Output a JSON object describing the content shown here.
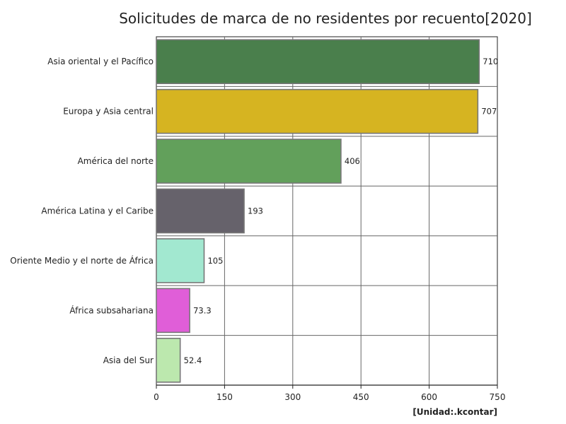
{
  "chart_data": {
    "type": "bar",
    "orientation": "horizontal",
    "title": "Solicitudes de marca de no residentes por recuento[2020]",
    "unit": "[Unidad:.kcontar]",
    "categories": [
      "Asia oriental y el Pacífico",
      "Europa y Asia central",
      "América del norte",
      "América Latina y el Caribe",
      "Oriente Medio y el norte de África",
      "África subsahariana",
      "Asia del Sur"
    ],
    "values": [
      710,
      707,
      406,
      193,
      105,
      73.3,
      52.4
    ],
    "value_labels": [
      "710",
      "707",
      "406",
      "193",
      "105",
      "73.3",
      "52.4"
    ],
    "colors": [
      "#4a7f4c",
      "#d6b421",
      "#62a05b",
      "#66626b",
      "#a2e8d0",
      "#e05ed8",
      "#bce8ae"
    ],
    "xlim": [
      0,
      750
    ],
    "xticks": [
      0,
      150,
      300,
      450,
      600,
      750
    ],
    "grid": true
  }
}
